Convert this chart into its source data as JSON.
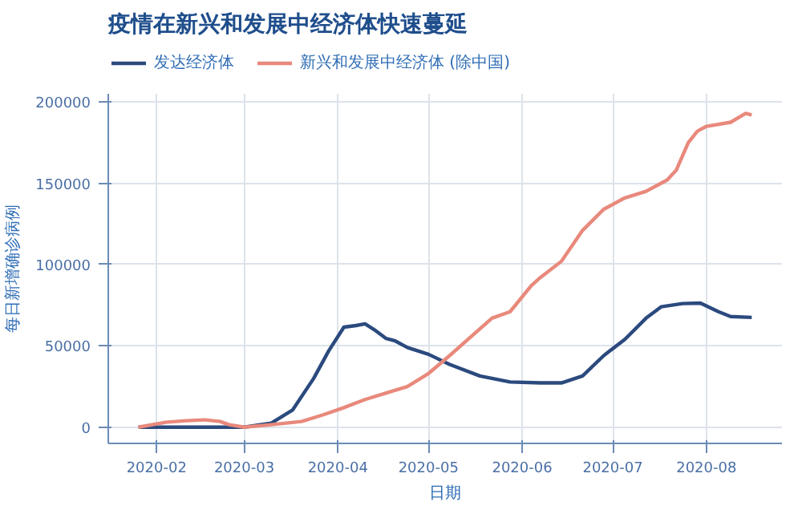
{
  "chart_data": {
    "type": "line",
    "title": "疫情在新兴和发展中经济体快速蔓延",
    "xlabel": "日期",
    "ylabel": "每日新增确诊病例",
    "series": [
      {
        "name": "发达经济体",
        "color": "#2b4a7e",
        "x": [
          "2020-01-26",
          "2020-02-15",
          "2020-03-01",
          "2020-03-10",
          "2020-03-17",
          "2020-03-24",
          "2020-03-29",
          "2020-04-03",
          "2020-04-07",
          "2020-04-10",
          "2020-04-13",
          "2020-04-17",
          "2020-04-20",
          "2020-04-24",
          "2020-05-01",
          "2020-05-08",
          "2020-05-18",
          "2020-05-28",
          "2020-06-07",
          "2020-06-14",
          "2020-06-21",
          "2020-06-28",
          "2020-07-05",
          "2020-07-12",
          "2020-07-17",
          "2020-07-24",
          "2020-07-30",
          "2020-08-05",
          "2020-08-09",
          "2020-08-16"
        ],
        "values": [
          0,
          0,
          0,
          2500,
          10500,
          30000,
          47000,
          61500,
          62500,
          63500,
          60000,
          54500,
          53000,
          49000,
          44800,
          38600,
          31500,
          27800,
          27200,
          27200,
          31500,
          44000,
          54000,
          67000,
          74000,
          76000,
          76300,
          71000,
          68000,
          67500
        ]
      },
      {
        "name": "新兴和发展中经济体 (除中国)",
        "color": "#e8897c",
        "x": [
          "2020-01-26",
          "2020-02-04",
          "2020-02-11",
          "2020-02-17",
          "2020-02-22",
          "2020-02-25",
          "2020-03-01",
          "2020-03-10",
          "2020-03-20",
          "2020-03-27",
          "2020-04-03",
          "2020-04-10",
          "2020-04-17",
          "2020-04-24",
          "2020-05-01",
          "2020-05-08",
          "2020-05-15",
          "2020-05-22",
          "2020-05-28",
          "2020-06-04",
          "2020-06-07",
          "2020-06-14",
          "2020-06-21",
          "2020-06-28",
          "2020-07-05",
          "2020-07-12",
          "2020-07-19",
          "2020-07-22",
          "2020-07-26",
          "2020-07-29",
          "2020-08-01",
          "2020-08-09",
          "2020-08-14",
          "2020-08-16"
        ],
        "values": [
          0,
          3000,
          4000,
          4500,
          3500,
          1500,
          0,
          1500,
          3500,
          7500,
          12000,
          17000,
          21000,
          25000,
          33000,
          44000,
          55500,
          67000,
          71000,
          87000,
          92000,
          102000,
          121000,
          134000,
          141000,
          145000,
          152000,
          158000,
          175000,
          182000,
          185000,
          187500,
          193000,
          192000
        ]
      }
    ],
    "xlim": [
      "2020-01-16",
      "2020-08-26"
    ],
    "xticks": [
      {
        "value": "2020-02-01",
        "label": "2020-02"
      },
      {
        "value": "2020-03-01",
        "label": "2020-03"
      },
      {
        "value": "2020-04-01",
        "label": "2020-04"
      },
      {
        "value": "2020-05-01",
        "label": "2020-05"
      },
      {
        "value": "2020-06-01",
        "label": "2020-06"
      },
      {
        "value": "2020-07-01",
        "label": "2020-07"
      },
      {
        "value": "2020-08-01",
        "label": "2020-08"
      }
    ],
    "ylim": [
      -10000,
      205000
    ],
    "yticks": [
      0,
      50000,
      100000,
      150000,
      200000
    ],
    "grid": true,
    "legend": "top left",
    "marker": "none",
    "line_style": "solid"
  }
}
